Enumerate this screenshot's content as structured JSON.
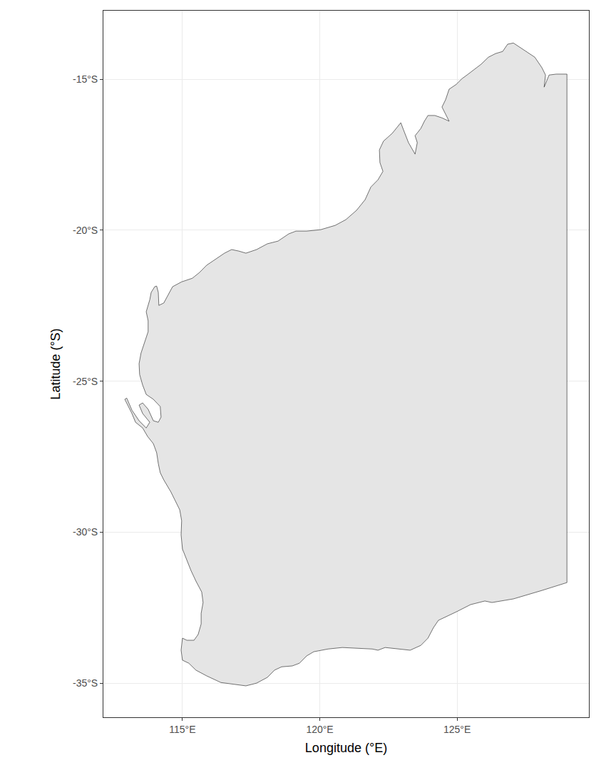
{
  "chart_data": {
    "type": "map",
    "xlabel": "Longitude (°E)",
    "ylabel": "Latitude (°S)",
    "color": "#e5e5e5",
    "grid": true,
    "xlim": [
      112.12,
      129.8
    ],
    "ylim": [
      -36.13,
      -12.73
    ],
    "xticks": [
      {
        "value": 115,
        "label": "115°E"
      },
      {
        "value": 120,
        "label": "120°E"
      },
      {
        "value": 125,
        "label": "125°E"
      }
    ],
    "yticks": [
      {
        "value": -35,
        "label": "-35°S"
      },
      {
        "value": -30,
        "label": "-30°S"
      },
      {
        "value": -25,
        "label": "-25°S"
      },
      {
        "value": -20,
        "label": "-20°S"
      },
      {
        "value": -15,
        "label": "-15°S"
      }
    ],
    "x": [
      129.0,
      129.0,
      128.09,
      127.05,
      126.27,
      126.01,
      125.49,
      124.97,
      124.32,
      124.14,
      123.94,
      123.68,
      123.29,
      122.9,
      122.38,
      122.12,
      121.91,
      120.82,
      120.3,
      119.78,
      119.52,
      119.26,
      119.0,
      118.61,
      118.35,
      118.09,
      117.7,
      117.31,
      116.92,
      116.4,
      115.88,
      115.49,
      115.23,
      115.0,
      114.95,
      115.0,
      115.16,
      115.42,
      115.57,
      115.68,
      115.68,
      115.75,
      115.7,
      115.49,
      115.31,
      115.16,
      115.0,
      114.95,
      114.97,
      114.9,
      114.71,
      114.58,
      114.32,
      114.19,
      114.12,
      114.06,
      113.94,
      113.73,
      113.55,
      113.29,
      113.16,
      113.03,
      112.9,
      112.97,
      113.16,
      113.42,
      113.68,
      113.81,
      113.55,
      113.42,
      113.55,
      113.75,
      113.94,
      114.12,
      114.22,
      114.19,
      113.94,
      113.68,
      113.55,
      113.44,
      113.42,
      113.49,
      113.62,
      113.75,
      113.75,
      113.68,
      113.81,
      113.86,
      113.99,
      114.06,
      114.12,
      114.14,
      114.32,
      114.45,
      114.64,
      114.97,
      115.36,
      115.62,
      115.88,
      116.14,
      116.53,
      116.79,
      117.05,
      117.31,
      117.7,
      118.09,
      118.48,
      118.87,
      119.13,
      119.52,
      120.04,
      120.56,
      120.95,
      121.34,
      121.65,
      121.86,
      122.12,
      122.3,
      122.19,
      122.17,
      122.32,
      122.64,
      122.84,
      122.95,
      123.05,
      123.23,
      123.47,
      123.55,
      123.47,
      123.68,
      123.81,
      123.94,
      124.19,
      124.45,
      124.71,
      124.58,
      124.45,
      124.58,
      124.71,
      124.97,
      125.18,
      125.36,
      125.62,
      125.88,
      126.14,
      126.4,
      126.66,
      126.84,
      127.05,
      127.44,
      127.83,
      128.09,
      128.22,
      128.17,
      128.35,
      128.61,
      129.0
    ],
    "y": [
      -14.83,
      -31.67,
      -31.93,
      -32.21,
      -32.33,
      -32.28,
      -32.4,
      -32.64,
      -32.92,
      -33.16,
      -33.51,
      -33.75,
      -33.91,
      -33.87,
      -33.82,
      -33.91,
      -33.87,
      -33.82,
      -33.87,
      -33.96,
      -34.1,
      -34.34,
      -34.43,
      -34.46,
      -34.57,
      -34.81,
      -35.0,
      -35.09,
      -35.05,
      -34.98,
      -34.76,
      -34.57,
      -34.34,
      -34.24,
      -33.91,
      -33.51,
      -33.58,
      -33.58,
      -33.39,
      -33.04,
      -32.69,
      -32.33,
      -31.98,
      -31.62,
      -31.27,
      -30.92,
      -30.56,
      -30.09,
      -29.62,
      -29.26,
      -28.91,
      -28.67,
      -28.27,
      -28.03,
      -27.73,
      -27.37,
      -27.07,
      -26.83,
      -26.55,
      -26.36,
      -26.07,
      -25.84,
      -25.6,
      -25.56,
      -25.96,
      -26.31,
      -26.55,
      -26.36,
      -26.07,
      -25.79,
      -25.72,
      -25.93,
      -26.31,
      -26.36,
      -26.19,
      -25.84,
      -25.6,
      -25.44,
      -25.13,
      -24.78,
      -24.42,
      -24.07,
      -23.71,
      -23.36,
      -23.0,
      -22.7,
      -22.3,
      -22.06,
      -21.87,
      -21.85,
      -22.06,
      -22.49,
      -22.41,
      -22.18,
      -21.87,
      -21.71,
      -21.59,
      -21.4,
      -21.16,
      -21.0,
      -20.76,
      -20.64,
      -20.69,
      -20.76,
      -20.64,
      -20.45,
      -20.36,
      -20.12,
      -20.03,
      -20.03,
      -19.98,
      -19.84,
      -19.65,
      -19.34,
      -18.99,
      -18.57,
      -18.33,
      -18.05,
      -17.76,
      -17.34,
      -17.05,
      -16.79,
      -16.58,
      -16.44,
      -16.68,
      -17.1,
      -17.48,
      -17.1,
      -16.87,
      -16.63,
      -16.39,
      -16.2,
      -16.2,
      -16.28,
      -16.39,
      -16.16,
      -15.92,
      -15.68,
      -15.33,
      -15.17,
      -14.98,
      -14.86,
      -14.69,
      -14.5,
      -14.27,
      -14.15,
      -14.08,
      -13.84,
      -13.8,
      -14.03,
      -14.27,
      -14.62,
      -14.86,
      -15.26,
      -14.86,
      -14.83,
      -14.83
    ]
  }
}
